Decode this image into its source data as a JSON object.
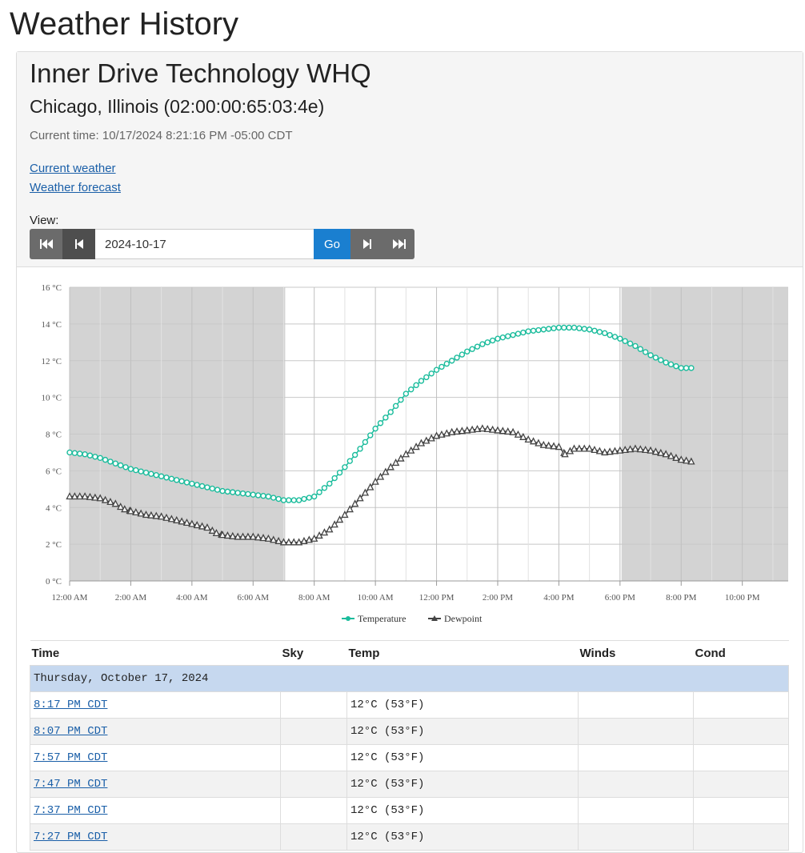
{
  "page": {
    "title": "Weather History"
  },
  "station": {
    "name": "Inner Drive Technology WHQ",
    "location": "Chicago, Illinois (02:00:00:65:03:4e)",
    "current_time": "Current time: 10/17/2024 8:21:16 PM -05:00 CDT"
  },
  "links": {
    "current_weather": "Current weather",
    "weather_forecast": "Weather forecast"
  },
  "view": {
    "label": "View:",
    "date_value": "2024-10-17",
    "go_label": "Go",
    "icons": [
      "skip-first-icon",
      "step-back-icon",
      "step-forward-icon",
      "skip-last-icon"
    ]
  },
  "colors": {
    "temperature": "#1abc9c",
    "dewpoint": "#444444",
    "night_shade": "#d3d3d3",
    "day_header": "#c6d8ef",
    "go": "#1a7fd0"
  },
  "chart_data": {
    "type": "line",
    "title": "",
    "xlabel": "",
    "ylabel": "",
    "ylim": [
      0,
      16
    ],
    "xlim_hours": [
      0,
      23.5
    ],
    "y_ticks": [
      "0 °C",
      "2 °C",
      "4 °C",
      "6 °C",
      "8 °C",
      "10 °C",
      "12 °C",
      "14 °C",
      "16 °C"
    ],
    "x_ticks": [
      "12:00 AM",
      "2:00 AM",
      "4:00 AM",
      "6:00 AM",
      "8:00 AM",
      "10:00 AM",
      "12:00 PM",
      "2:00 PM",
      "4:00 PM",
      "6:00 PM",
      "8:00 PM",
      "10:00 PM"
    ],
    "night_shading_hours": [
      [
        0,
        7.05
      ],
      [
        18.05,
        23.5
      ]
    ],
    "grid": true,
    "legend": "bottom-center",
    "series": [
      {
        "name": "Temperature",
        "marker": "circle",
        "points": [
          [
            0,
            7.0
          ],
          [
            0.5,
            6.9
          ],
          [
            1,
            6.7
          ],
          [
            1.5,
            6.4
          ],
          [
            2,
            6.1
          ],
          [
            2.5,
            5.9
          ],
          [
            3,
            5.7
          ],
          [
            3.5,
            5.5
          ],
          [
            4,
            5.3
          ],
          [
            4.5,
            5.1
          ],
          [
            5,
            4.9
          ],
          [
            5.5,
            4.8
          ],
          [
            6,
            4.7
          ],
          [
            6.5,
            4.6
          ],
          [
            7,
            4.4
          ],
          [
            7.5,
            4.4
          ],
          [
            8,
            4.6
          ],
          [
            8.5,
            5.3
          ],
          [
            9,
            6.2
          ],
          [
            9.5,
            7.2
          ],
          [
            10,
            8.3
          ],
          [
            10.5,
            9.2
          ],
          [
            11,
            10.2
          ],
          [
            11.5,
            10.9
          ],
          [
            12,
            11.5
          ],
          [
            12.5,
            12.0
          ],
          [
            13,
            12.5
          ],
          [
            13.5,
            12.9
          ],
          [
            14,
            13.2
          ],
          [
            14.5,
            13.4
          ],
          [
            15,
            13.6
          ],
          [
            15.5,
            13.7
          ],
          [
            16,
            13.8
          ],
          [
            16.5,
            13.8
          ],
          [
            17,
            13.7
          ],
          [
            17.5,
            13.5
          ],
          [
            18,
            13.2
          ],
          [
            18.5,
            12.8
          ],
          [
            19,
            12.3
          ],
          [
            19.5,
            11.9
          ],
          [
            20,
            11.6
          ],
          [
            20.33,
            11.6
          ]
        ]
      },
      {
        "name": "Dewpoint",
        "marker": "triangle",
        "points": [
          [
            0,
            4.6
          ],
          [
            0.5,
            4.6
          ],
          [
            1,
            4.5
          ],
          [
            1.5,
            4.2
          ],
          [
            1.8,
            3.9
          ],
          [
            2,
            3.8
          ],
          [
            2.5,
            3.6
          ],
          [
            3,
            3.5
          ],
          [
            3.5,
            3.3
          ],
          [
            4,
            3.1
          ],
          [
            4.5,
            2.9
          ],
          [
            4.8,
            2.6
          ],
          [
            5,
            2.5
          ],
          [
            5.5,
            2.4
          ],
          [
            6,
            2.4
          ],
          [
            6.5,
            2.3
          ],
          [
            7,
            2.1
          ],
          [
            7.5,
            2.1
          ],
          [
            8,
            2.3
          ],
          [
            8.5,
            2.8
          ],
          [
            9,
            3.6
          ],
          [
            9.5,
            4.5
          ],
          [
            10,
            5.4
          ],
          [
            10.5,
            6.2
          ],
          [
            11,
            6.9
          ],
          [
            11.5,
            7.5
          ],
          [
            12,
            7.9
          ],
          [
            12.5,
            8.1
          ],
          [
            13,
            8.2
          ],
          [
            13.5,
            8.3
          ],
          [
            14,
            8.2
          ],
          [
            14.5,
            8.1
          ],
          [
            15,
            7.7
          ],
          [
            15.5,
            7.4
          ],
          [
            16,
            7.3
          ],
          [
            16.2,
            6.9
          ],
          [
            16.5,
            7.2
          ],
          [
            17,
            7.2
          ],
          [
            17.5,
            7.0
          ],
          [
            18,
            7.1
          ],
          [
            18.5,
            7.2
          ],
          [
            19,
            7.1
          ],
          [
            19.5,
            6.9
          ],
          [
            20,
            6.6
          ],
          [
            20.33,
            6.5
          ]
        ]
      }
    ]
  },
  "table": {
    "headers": [
      "Time",
      "Sky",
      "Temp",
      "Winds",
      "Cond"
    ],
    "day_label": "Thursday, October 17, 2024",
    "rows": [
      {
        "time": "8:17 PM CDT",
        "sky": "",
        "temp": "12°C (53°F)",
        "winds": "",
        "cond": ""
      },
      {
        "time": "8:07 PM CDT",
        "sky": "",
        "temp": "12°C (53°F)",
        "winds": "",
        "cond": ""
      },
      {
        "time": "7:57 PM CDT",
        "sky": "",
        "temp": "12°C (53°F)",
        "winds": "",
        "cond": ""
      },
      {
        "time": "7:47 PM CDT",
        "sky": "",
        "temp": "12°C (53°F)",
        "winds": "",
        "cond": ""
      },
      {
        "time": "7:37 PM CDT",
        "sky": "",
        "temp": "12°C (53°F)",
        "winds": "",
        "cond": ""
      },
      {
        "time": "7:27 PM CDT",
        "sky": "",
        "temp": "12°C (53°F)",
        "winds": "",
        "cond": ""
      }
    ]
  }
}
